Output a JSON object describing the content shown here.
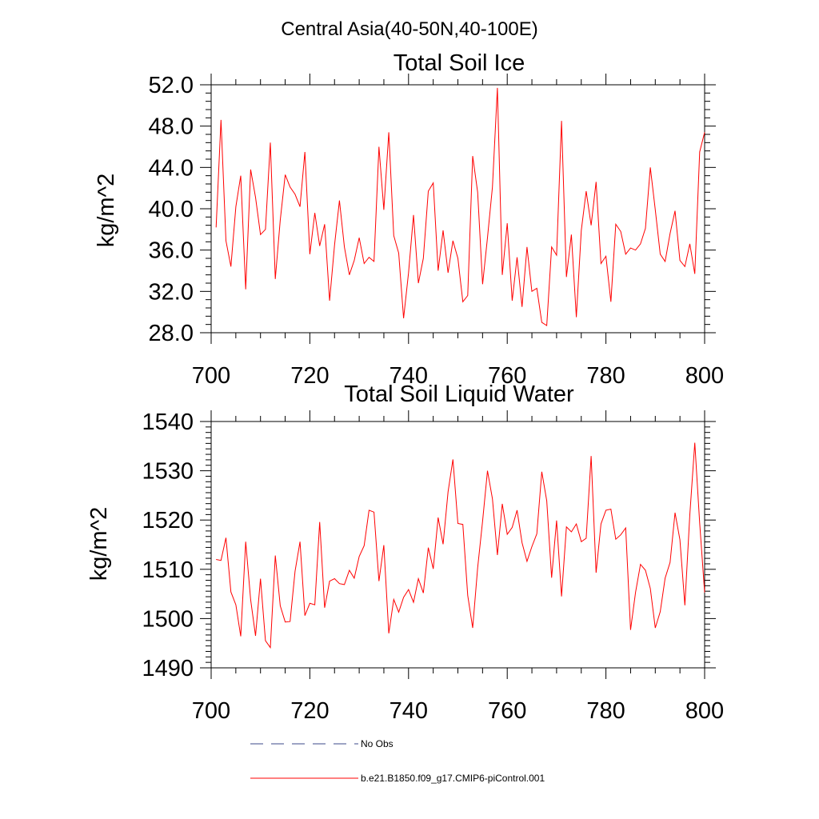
{
  "page": {
    "title": "Central Asia(40-50N,40-100E)"
  },
  "legend": {
    "obs_label": "No Obs",
    "obs_color": "#3b4a8a",
    "model_label": "b.e21.B1850.f09_g17.CMIP6-piControl.001",
    "model_color": "#ff0000"
  },
  "chart_data": [
    {
      "type": "line",
      "title": "Total Soil Ice",
      "xlabel": "",
      "ylabel": "kg/m^2",
      "xlim": [
        700,
        800
      ],
      "ylim": [
        28,
        52
      ],
      "xticks": [
        700,
        720,
        740,
        760,
        780,
        800
      ],
      "xtick_labels": [
        "700",
        "720",
        "740",
        "760",
        "780",
        "800"
      ],
      "yticks": [
        28,
        32,
        36,
        40,
        44,
        48,
        52
      ],
      "ytick_labels": [
        "28.0",
        "32.0",
        "36.0",
        "40.0",
        "44.0",
        "48.0",
        "52.0"
      ],
      "grid": false,
      "series": [
        {
          "name": "b.e21.B1850.f09_g17.CMIP6-piControl.001",
          "color": "#ff0000",
          "x": [
            701,
            702,
            703,
            704,
            705,
            706,
            707,
            708,
            709,
            710,
            711,
            712,
            713,
            714,
            715,
            716,
            717,
            718,
            719,
            720,
            721,
            722,
            723,
            724,
            725,
            726,
            727,
            728,
            729,
            730,
            731,
            732,
            733,
            734,
            735,
            736,
            737,
            738,
            739,
            740,
            741,
            742,
            743,
            744,
            745,
            746,
            747,
            748,
            749,
            750,
            751,
            752,
            753,
            754,
            755,
            756,
            757,
            758,
            759,
            760,
            761,
            762,
            763,
            764,
            765,
            766,
            767,
            768,
            769,
            770,
            771,
            772,
            773,
            774,
            775,
            776,
            777,
            778,
            779,
            780,
            781,
            782,
            783,
            784,
            785,
            786,
            787,
            788,
            789,
            790,
            791,
            792,
            793,
            794,
            795,
            796,
            797,
            798,
            799,
            800
          ],
          "y": [
            38.2,
            48.6,
            36.9,
            34.4,
            40.2,
            43.2,
            32.2,
            43.8,
            41.1,
            37.5,
            38.0,
            46.4,
            33.2,
            38.9,
            43.3,
            42.1,
            41.4,
            40.2,
            45.5,
            35.6,
            39.6,
            36.4,
            38.5,
            31.1,
            36.5,
            40.8,
            36.3,
            33.6,
            35.0,
            37.2,
            34.7,
            35.3,
            34.9,
            46.0,
            39.9,
            47.4,
            37.4,
            35.7,
            29.4,
            33.8,
            39.4,
            32.8,
            35.2,
            41.7,
            42.5,
            34.0,
            37.9,
            33.8,
            36.9,
            35.2,
            31.0,
            31.6,
            45.1,
            41.6,
            32.7,
            37.2,
            42.1,
            51.7,
            33.6,
            38.6,
            31.1,
            35.3,
            30.5,
            36.3,
            32.0,
            32.3,
            29.0,
            28.7,
            36.3,
            35.5,
            48.5,
            33.4,
            37.5,
            29.5,
            37.9,
            41.7,
            38.4,
            42.6,
            34.7,
            35.4,
            31.0,
            38.5,
            37.8,
            35.6,
            36.2,
            36.0,
            36.6,
            38.1,
            44.0,
            39.9,
            35.6,
            34.9,
            37.6,
            39.8,
            35.0,
            34.4,
            36.6,
            33.7,
            45.5,
            47.4
          ]
        }
      ]
    },
    {
      "type": "line",
      "title": "Total Soil Liquid Water",
      "xlabel": "",
      "ylabel": "kg/m^2",
      "xlim": [
        700,
        800
      ],
      "ylim": [
        1490,
        1540
      ],
      "xticks": [
        700,
        720,
        740,
        760,
        780,
        800
      ],
      "xtick_labels": [
        "700",
        "720",
        "740",
        "760",
        "780",
        "800"
      ],
      "yticks": [
        1490,
        1500,
        1510,
        1520,
        1530,
        1540
      ],
      "ytick_labels": [
        "1490",
        "1500",
        "1510",
        "1520",
        "1530",
        "1540"
      ],
      "grid": false,
      "series": [
        {
          "name": "b.e21.B1850.f09_g17.CMIP6-piControl.001",
          "color": "#ff0000",
          "x": [
            701,
            702,
            703,
            704,
            705,
            706,
            707,
            708,
            709,
            710,
            711,
            712,
            713,
            714,
            715,
            716,
            717,
            718,
            719,
            720,
            721,
            722,
            723,
            724,
            725,
            726,
            727,
            728,
            729,
            730,
            731,
            732,
            733,
            734,
            735,
            736,
            737,
            738,
            739,
            740,
            741,
            742,
            743,
            744,
            745,
            746,
            747,
            748,
            749,
            750,
            751,
            752,
            753,
            754,
            755,
            756,
            757,
            758,
            759,
            760,
            761,
            762,
            763,
            764,
            765,
            766,
            767,
            768,
            769,
            770,
            771,
            772,
            773,
            774,
            775,
            776,
            777,
            778,
            779,
            780,
            781,
            782,
            783,
            784,
            785,
            786,
            787,
            788,
            789,
            790,
            791,
            792,
            793,
            794,
            795,
            796,
            797,
            798,
            799,
            800
          ],
          "y": [
            1512.0,
            1511.8,
            1516.4,
            1505.4,
            1502.8,
            1496.4,
            1515.6,
            1503.8,
            1496.5,
            1508.1,
            1495.5,
            1494.1,
            1512.8,
            1502.6,
            1499.3,
            1499.4,
            1509.6,
            1515.6,
            1500.6,
            1503.1,
            1502.8,
            1519.6,
            1502.2,
            1507.6,
            1508.1,
            1507.1,
            1506.9,
            1509.8,
            1508.2,
            1512.6,
            1514.8,
            1522.0,
            1521.6,
            1507.6,
            1514.9,
            1497.0,
            1503.9,
            1501.3,
            1504.3,
            1505.9,
            1503.3,
            1508.1,
            1505.2,
            1514.4,
            1510.1,
            1520.5,
            1515.1,
            1525.7,
            1532.3,
            1519.3,
            1519.1,
            1504.7,
            1498.1,
            1510.3,
            1519.8,
            1530.0,
            1524.3,
            1512.9,
            1523.3,
            1517.1,
            1518.5,
            1522.0,
            1515.4,
            1511.6,
            1514.6,
            1517.2,
            1529.8,
            1523.9,
            1508.3,
            1519.9,
            1504.5,
            1518.6,
            1517.6,
            1519.2,
            1515.6,
            1516.3,
            1533.0,
            1509.3,
            1519.2,
            1522.0,
            1522.2,
            1516.1,
            1517.0,
            1518.4,
            1497.7,
            1505.3,
            1511.0,
            1509.8,
            1506.1,
            1498.1,
            1501.4,
            1508.2,
            1511.4,
            1521.5,
            1516.0,
            1502.7,
            1521.1,
            1535.7,
            1519.4,
            1505.3
          ]
        }
      ]
    }
  ]
}
